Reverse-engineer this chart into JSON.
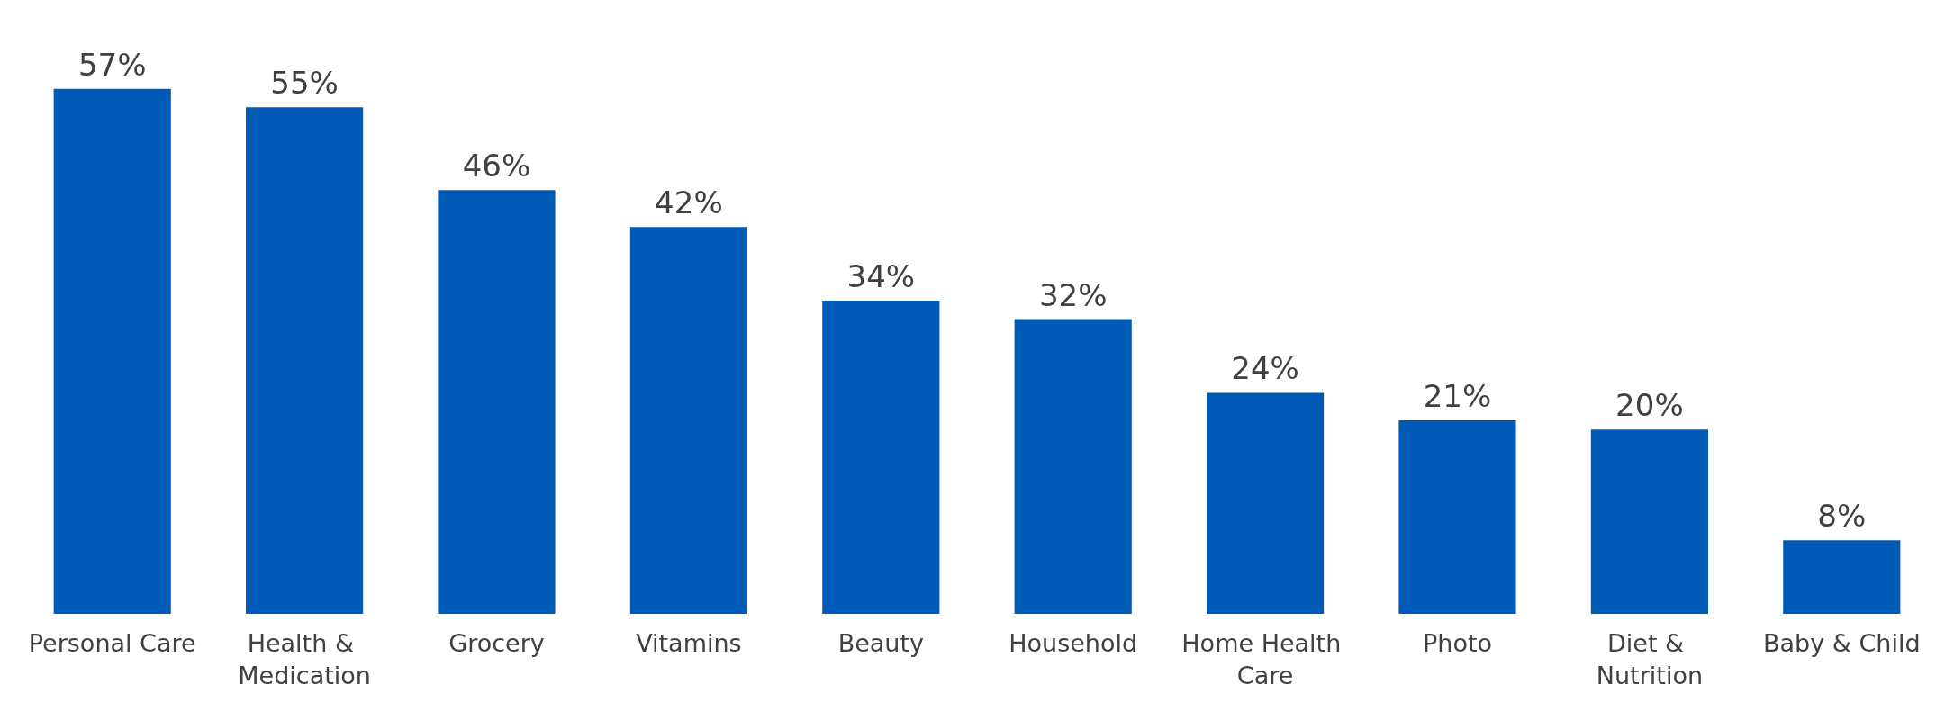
{
  "chart_data": {
    "type": "bar",
    "categories": [
      "Personal Care",
      "Health & Medication",
      "Grocery",
      "Vitamins",
      "Beauty",
      "Household",
      "Home Health Care",
      "Photo",
      "Diet & Nutrition",
      "Baby & Child"
    ],
    "values": [
      57,
      55,
      46,
      42,
      34,
      32,
      24,
      21,
      20,
      8
    ],
    "value_labels": [
      "57%",
      "55%",
      "46%",
      "42%",
      "34%",
      "32%",
      "24%",
      "21%",
      "20%",
      "8%"
    ],
    "color": "#005bb7"
  }
}
